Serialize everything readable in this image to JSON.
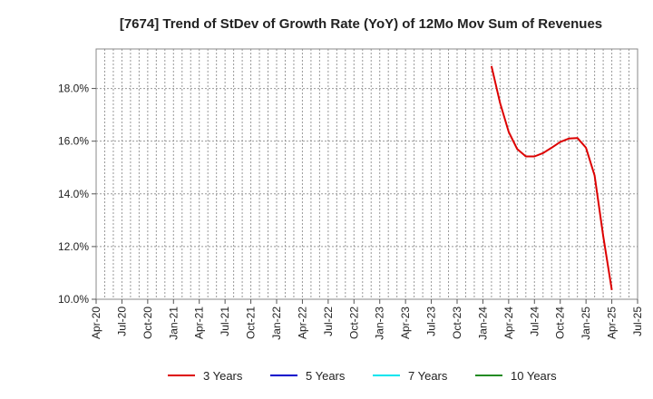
{
  "chart_data": {
    "type": "line",
    "title": "[7674]  Trend of StDev of Growth Rate (YoY) of 12Mo Mov Sum of Revenues",
    "xlabel": "",
    "ylabel": "",
    "x_ticks": [
      "Apr-20",
      "Jul-20",
      "Oct-20",
      "Jan-21",
      "Apr-21",
      "Jul-21",
      "Oct-21",
      "Jan-22",
      "Apr-22",
      "Jul-22",
      "Oct-22",
      "Jan-23",
      "Apr-23",
      "Jul-23",
      "Oct-23",
      "Jan-24",
      "Apr-24",
      "Jul-24",
      "Oct-24",
      "Jan-25",
      "Apr-25",
      "Jul-25"
    ],
    "y_ticks": [
      "10.0%",
      "12.0%",
      "14.0%",
      "16.0%",
      "18.0%"
    ],
    "y_tick_values": [
      10,
      12,
      14,
      16,
      18
    ],
    "ylim": [
      10,
      19.5
    ],
    "xlim_months": [
      0,
      63
    ],
    "grid": true,
    "legend_position": "bottom",
    "series": [
      {
        "name": "3 Years",
        "color": "#dd0000",
        "x": [
          "Feb-24",
          "Mar-24",
          "Apr-24",
          "May-24",
          "Jun-24",
          "Jul-24",
          "Aug-24",
          "Sep-24",
          "Oct-24",
          "Nov-24",
          "Dec-24",
          "Jan-25",
          "Feb-25",
          "Mar-25",
          "Apr-25"
        ],
        "x_months": [
          46,
          47,
          48,
          49,
          50,
          51,
          52,
          53,
          54,
          55,
          56,
          57,
          58,
          59,
          60
        ],
        "values": [
          18.85,
          17.45,
          16.35,
          15.7,
          15.42,
          15.42,
          15.55,
          15.75,
          15.97,
          16.1,
          16.12,
          15.75,
          14.7,
          12.4,
          10.35
        ]
      },
      {
        "name": "5 Years",
        "color": "#0000cc",
        "x_months": [],
        "values": []
      },
      {
        "name": "7 Years",
        "color": "#00e5ee",
        "x_months": [],
        "values": []
      },
      {
        "name": "10 Years",
        "color": "#228b22",
        "x_months": [],
        "values": []
      }
    ]
  }
}
